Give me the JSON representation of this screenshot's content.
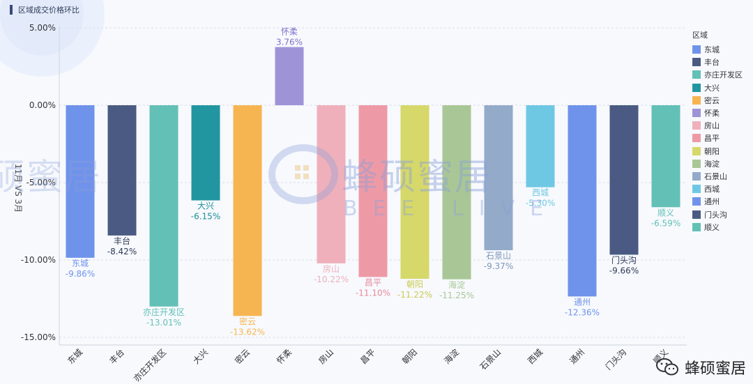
{
  "title": "区域成交价格环比",
  "chart_data": {
    "type": "bar",
    "title": "区域成交价格环比",
    "ylabel": "11月 VS 3月",
    "ylim": [
      -15,
      5
    ],
    "yticks": [
      "5.00%",
      "0.00%",
      "-5.00%",
      "-10.00%",
      "-15.00%"
    ],
    "ytick_values": [
      5,
      0,
      -5,
      -10,
      -15
    ],
    "grid": true,
    "legend_title": "区域",
    "legend_position": "right",
    "categories": [
      "东城",
      "丰台",
      "亦庄开发区",
      "大兴",
      "密云",
      "怀柔",
      "房山",
      "昌平",
      "朝阳",
      "海淀",
      "石景山",
      "西城",
      "通州",
      "门头沟",
      "顺义"
    ],
    "values": [
      -9.86,
      -8.42,
      -13.01,
      -6.15,
      -13.62,
      3.76,
      -10.22,
      -11.1,
      -11.22,
      -11.25,
      -9.37,
      -5.3,
      -12.36,
      -9.66,
      -6.59
    ],
    "value_labels": [
      "-9.86%",
      "-8.42%",
      "-13.01%",
      "-6.15%",
      "-13.62%",
      "3.76%",
      "-10.22%",
      "-11.10%",
      "-11.22%",
      "-11.25%",
      "-9.37%",
      "-5.30%",
      "-12.36%",
      "-9.66%",
      "-6.59%"
    ],
    "colors": [
      "#6f93ea",
      "#4a5a82",
      "#63c0b6",
      "#2196a1",
      "#f7b551",
      "#9f93d8",
      "#efb0bb",
      "#ee9aa6",
      "#d6d86a",
      "#a9c796",
      "#93aac9",
      "#6fc8e3",
      "#6f93ea",
      "#4a5a82",
      "#63c0b6"
    ],
    "label_colors": [
      "#6f93ea",
      "#2f3a57",
      "#63c0b6",
      "#1d8f99",
      "#f7b551",
      "#7f70c8",
      "#efb0bb",
      "#e8899a",
      "#c9cc52",
      "#a9c796",
      "#7f96b8",
      "#6fc8e3",
      "#6f93ea",
      "#2f3a57",
      "#63c0b6"
    ]
  },
  "watermark": {
    "brand_cn": "蜂硕蜜居",
    "brand_en": "BEE LIVE"
  },
  "footer": {
    "brand": "蜂硕蜜居",
    "icon": "wechat-icon"
  }
}
